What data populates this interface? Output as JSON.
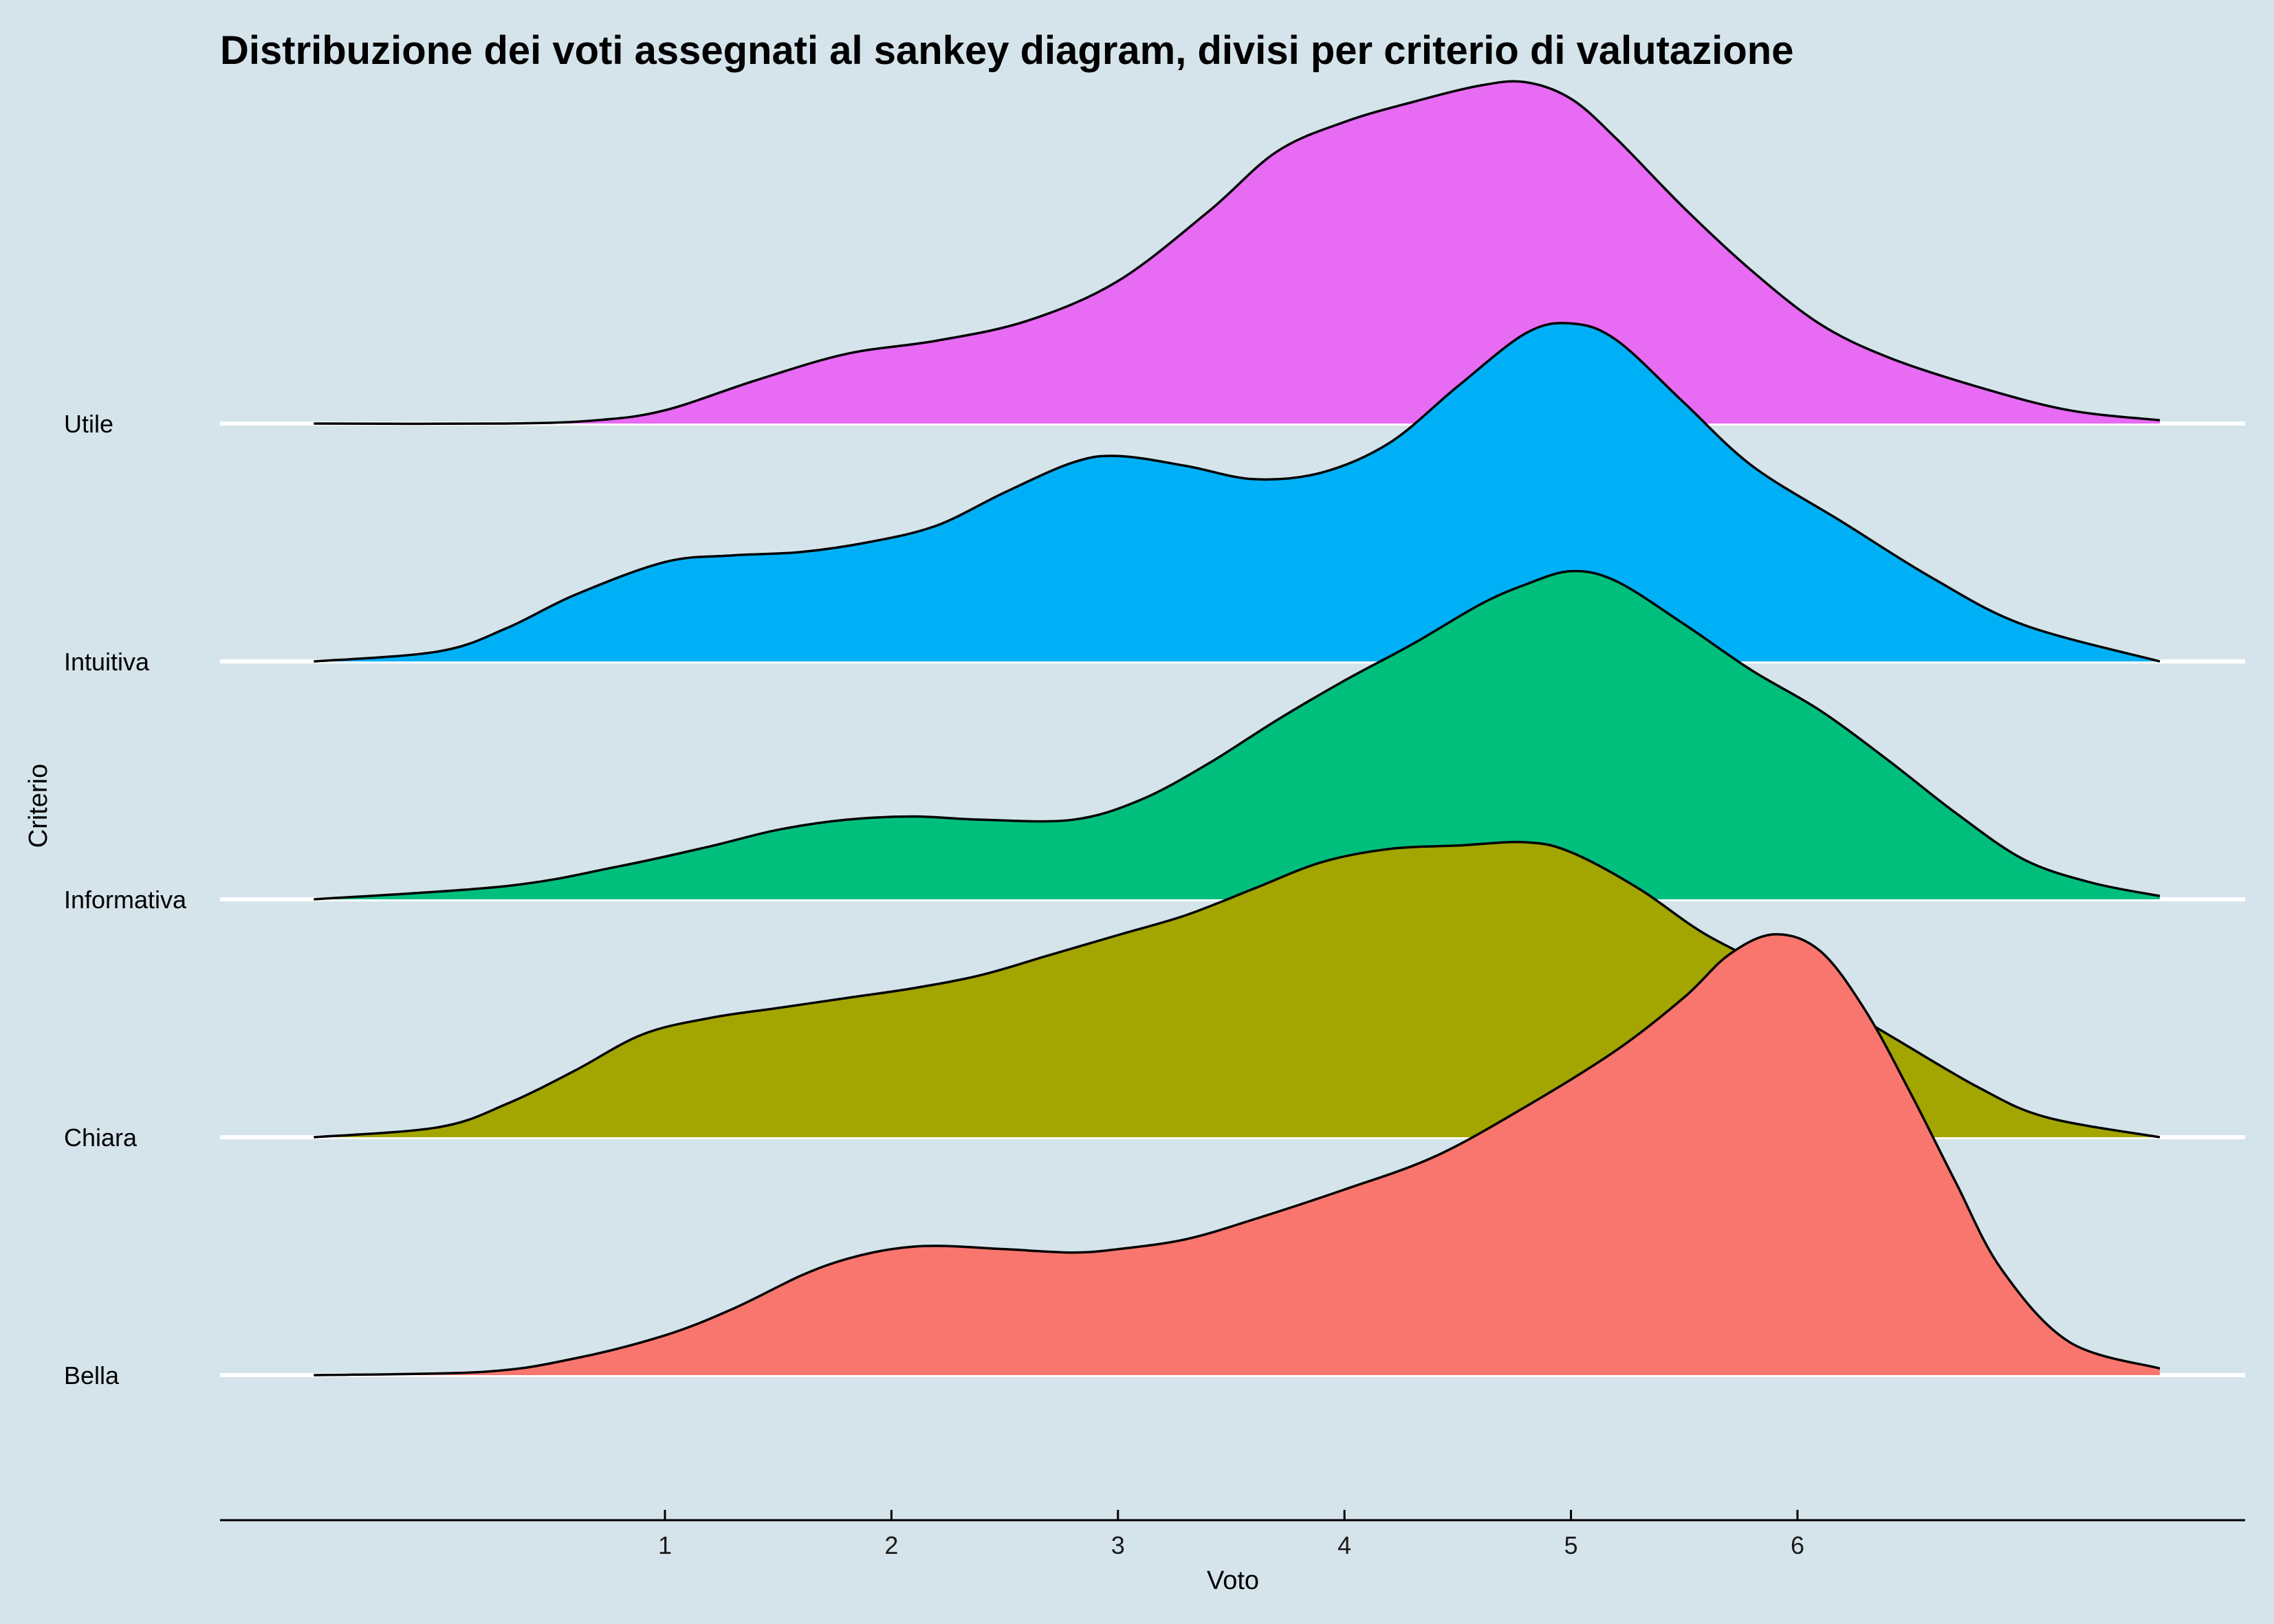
{
  "chart_data": {
    "type": "area",
    "subtype": "ridgeline-density",
    "title": "Distribuzione dei voti assegnati al sankey diagram, divisi per criterio di valutazione",
    "xlabel": "Voto",
    "ylabel": "Criterio",
    "xlim": [
      -0.55,
      7.6
    ],
    "x_ticks": [
      1,
      2,
      3,
      4,
      5,
      6
    ],
    "grid": "horizontal baselines only",
    "legend": "none",
    "categories": [
      "Bella",
      "Chiara",
      "Informativa",
      "Intuitiva",
      "Utile"
    ],
    "series": [
      {
        "name": "Bella",
        "color": "#f8766d",
        "x": [
          -0.55,
          0.2,
          0.6,
          1.0,
          1.3,
          1.6,
          1.8,
          2.0,
          2.2,
          2.5,
          2.8,
          3.0,
          3.3,
          3.6,
          4.0,
          4.4,
          4.8,
          5.2,
          5.5,
          5.7,
          5.9,
          6.1,
          6.3,
          6.5,
          6.7,
          6.9,
          7.2,
          7.6
        ],
        "density": [
          0.0,
          0.01,
          0.05,
          0.12,
          0.2,
          0.3,
          0.35,
          0.38,
          0.39,
          0.38,
          0.37,
          0.38,
          0.41,
          0.47,
          0.56,
          0.66,
          0.81,
          0.98,
          1.14,
          1.27,
          1.33,
          1.28,
          1.1,
          0.85,
          0.58,
          0.32,
          0.1,
          0.02
        ]
      },
      {
        "name": "Chiara",
        "color": "#a3a500",
        "x": [
          -0.55,
          0.0,
          0.3,
          0.6,
          0.9,
          1.2,
          1.5,
          1.8,
          2.1,
          2.4,
          2.7,
          3.0,
          3.3,
          3.6,
          3.9,
          4.2,
          4.5,
          4.8,
          5.0,
          5.3,
          5.6,
          6.0,
          6.4,
          6.8,
          7.1,
          7.6
        ],
        "density": [
          0.0,
          0.03,
          0.1,
          0.2,
          0.31,
          0.36,
          0.39,
          0.42,
          0.45,
          0.49,
          0.55,
          0.61,
          0.67,
          0.75,
          0.83,
          0.87,
          0.88,
          0.89,
          0.86,
          0.75,
          0.61,
          0.47,
          0.31,
          0.15,
          0.06,
          0.0
        ]
      },
      {
        "name": "Informativa",
        "color": "#00bf7d",
        "x": [
          -0.55,
          0.3,
          0.8,
          1.2,
          1.5,
          1.8,
          2.1,
          2.4,
          2.8,
          3.1,
          3.4,
          3.7,
          4.0,
          4.3,
          4.6,
          4.8,
          5.0,
          5.2,
          5.5,
          5.8,
          6.1,
          6.4,
          6.7,
          7.0,
          7.3,
          7.6
        ],
        "density": [
          0.0,
          0.04,
          0.1,
          0.16,
          0.21,
          0.24,
          0.25,
          0.24,
          0.24,
          0.3,
          0.41,
          0.54,
          0.66,
          0.77,
          0.89,
          0.95,
          0.99,
          0.96,
          0.83,
          0.69,
          0.57,
          0.42,
          0.26,
          0.12,
          0.05,
          0.01
        ]
      },
      {
        "name": "Intuitiva",
        "color": "#00b0f6",
        "x": [
          -0.55,
          0.0,
          0.3,
          0.6,
          1.0,
          1.3,
          1.6,
          1.9,
          2.2,
          2.5,
          2.8,
          3.0,
          3.3,
          3.6,
          3.9,
          4.2,
          4.5,
          4.8,
          5.0,
          5.2,
          5.5,
          5.8,
          6.2,
          6.6,
          7.0,
          7.6
        ],
        "density": [
          0.0,
          0.03,
          0.1,
          0.2,
          0.3,
          0.32,
          0.33,
          0.36,
          0.41,
          0.51,
          0.6,
          0.62,
          0.59,
          0.55,
          0.57,
          0.66,
          0.83,
          0.99,
          1.02,
          0.97,
          0.78,
          0.59,
          0.42,
          0.25,
          0.11,
          0.0
        ]
      },
      {
        "name": "Utile",
        "color": "#e76bf3",
        "x": [
          -0.55,
          0.3,
          0.7,
          1.0,
          1.4,
          1.8,
          2.2,
          2.6,
          3.0,
          3.4,
          3.7,
          4.0,
          4.3,
          4.6,
          4.8,
          5.0,
          5.2,
          5.5,
          5.8,
          6.1,
          6.4,
          6.8,
          7.2,
          7.6
        ],
        "density": [
          0.0,
          0.0,
          0.01,
          0.04,
          0.13,
          0.21,
          0.25,
          0.31,
          0.43,
          0.64,
          0.82,
          0.91,
          0.97,
          1.02,
          1.03,
          0.98,
          0.86,
          0.65,
          0.46,
          0.3,
          0.2,
          0.11,
          0.04,
          0.01
        ]
      }
    ]
  }
}
